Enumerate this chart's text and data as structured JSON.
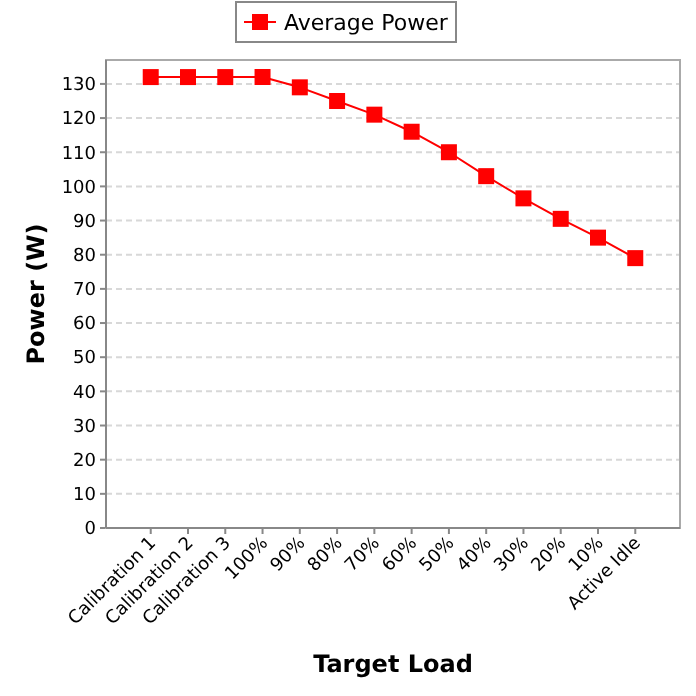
{
  "chart_data": {
    "type": "line",
    "xlabel": "Target Load",
    "ylabel": "Power (W)",
    "categories": [
      "Calibration 1",
      "Calibration 2",
      "Calibration 3",
      "100%",
      "90%",
      "80%",
      "70%",
      "60%",
      "50%",
      "40%",
      "30%",
      "20%",
      "10%",
      "Active Idle"
    ],
    "series": [
      {
        "name": "Average Power",
        "color": "#ff0000",
        "values": [
          132,
          132,
          132,
          132,
          129,
          125,
          121,
          116,
          110,
          103,
          96.5,
          90.5,
          85,
          79
        ]
      }
    ],
    "ylim": [
      0,
      137
    ],
    "yticks": [
      0,
      10,
      20,
      30,
      40,
      50,
      60,
      70,
      80,
      90,
      100,
      110,
      120,
      130
    ],
    "grid": "y",
    "legend": "top",
    "marker": "square",
    "line_style": "solid"
  }
}
